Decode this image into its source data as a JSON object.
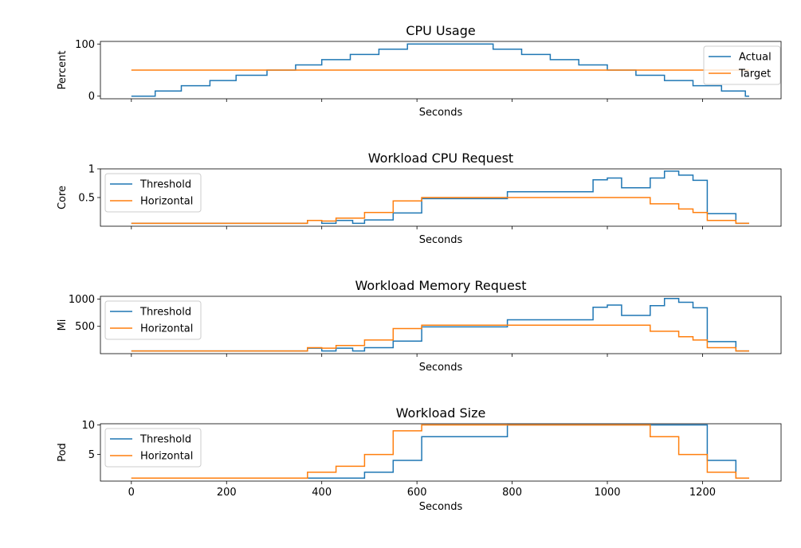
{
  "chart_data": [
    {
      "type": "line",
      "title": "CPU Usage",
      "xlabel": "Seconds",
      "ylabel": "Percent",
      "xlim": [
        -65,
        1365
      ],
      "ylim": [
        -5,
        105
      ],
      "xticks": [
        0,
        200,
        400,
        600,
        800,
        1000,
        1200
      ],
      "xtick_labels_shown": false,
      "yticks": [
        0,
        100
      ],
      "legend": "top-right",
      "series": [
        {
          "name": "Actual",
          "color": "#1f77b4",
          "x": [
            0,
            50,
            50,
            105,
            105,
            165,
            165,
            220,
            220,
            285,
            285,
            345,
            345,
            400,
            400,
            460,
            460,
            520,
            520,
            580,
            580,
            640,
            640,
            700,
            700,
            760,
            760,
            820,
            820,
            880,
            880,
            940,
            940,
            1000,
            1000,
            1060,
            1060,
            1120,
            1120,
            1180,
            1180,
            1240,
            1240,
            1290,
            1290,
            1298
          ],
          "y": [
            0,
            0,
            10,
            10,
            20,
            20,
            30,
            30,
            40,
            40,
            50,
            50,
            60,
            60,
            70,
            70,
            80,
            80,
            90,
            90,
            100,
            100,
            100,
            100,
            100,
            100,
            90,
            90,
            80,
            80,
            70,
            70,
            60,
            60,
            50,
            50,
            40,
            40,
            30,
            30,
            20,
            20,
            10,
            10,
            0,
            0
          ]
        },
        {
          "name": "Target",
          "color": "#ff7f0e",
          "x": [
            0,
            1298
          ],
          "y": [
            50,
            50
          ]
        }
      ]
    },
    {
      "type": "line",
      "title": "Workload CPU Request",
      "xlabel": "Seconds",
      "ylabel": "Core",
      "xlim": [
        -65,
        1365
      ],
      "ylim": [
        0,
        1.0
      ],
      "xticks": [
        0,
        200,
        400,
        600,
        800,
        1000,
        1200
      ],
      "xtick_labels_shown": false,
      "yticks": [
        0.5,
        1.0
      ],
      "legend": "top-left",
      "series": [
        {
          "name": "Threshold",
          "color": "#1f77b4",
          "x": [
            0,
            370,
            370,
            400,
            400,
            430,
            430,
            465,
            465,
            490,
            490,
            550,
            550,
            610,
            610,
            790,
            790,
            970,
            970,
            1000,
            1000,
            1030,
            1030,
            1090,
            1090,
            1120,
            1120,
            1150,
            1150,
            1180,
            1180,
            1210,
            1210,
            1270,
            1270,
            1298
          ],
          "y": [
            0.05,
            0.05,
            0.1,
            0.1,
            0.05,
            0.05,
            0.1,
            0.1,
            0.05,
            0.05,
            0.11,
            0.11,
            0.23,
            0.23,
            0.48,
            0.48,
            0.6,
            0.6,
            0.81,
            0.81,
            0.84,
            0.84,
            0.67,
            0.67,
            0.84,
            0.84,
            0.96,
            0.96,
            0.89,
            0.89,
            0.8,
            0.8,
            0.22,
            0.22,
            0.05,
            0.05
          ]
        },
        {
          "name": "Horizontal",
          "color": "#ff7f0e",
          "x": [
            0,
            370,
            370,
            400,
            400,
            430,
            430,
            490,
            490,
            550,
            550,
            610,
            610,
            1090,
            1090,
            1150,
            1150,
            1180,
            1180,
            1210,
            1210,
            1270,
            1270,
            1298
          ],
          "y": [
            0.05,
            0.05,
            0.1,
            0.1,
            0.09,
            0.09,
            0.14,
            0.14,
            0.24,
            0.24,
            0.44,
            0.44,
            0.5,
            0.5,
            0.39,
            0.39,
            0.3,
            0.3,
            0.24,
            0.24,
            0.1,
            0.1,
            0.05,
            0.05
          ]
        }
      ]
    },
    {
      "type": "line",
      "title": "Workload Memory Request",
      "xlabel": "Seconds",
      "ylabel": "Mi",
      "xlim": [
        -65,
        1365
      ],
      "ylim": [
        0,
        1050
      ],
      "xticks": [
        0,
        200,
        400,
        600,
        800,
        1000,
        1200
      ],
      "xtick_labels_shown": false,
      "yticks": [
        500,
        1000
      ],
      "legend": "top-left",
      "series": [
        {
          "name": "Threshold",
          "color": "#1f77b4",
          "x": [
            0,
            370,
            370,
            400,
            400,
            430,
            430,
            465,
            465,
            490,
            490,
            550,
            550,
            610,
            610,
            790,
            790,
            970,
            970,
            1000,
            1000,
            1030,
            1030,
            1090,
            1090,
            1120,
            1120,
            1150,
            1150,
            1180,
            1180,
            1210,
            1210,
            1270,
            1270,
            1298
          ],
          "y": [
            50,
            50,
            100,
            100,
            50,
            50,
            100,
            100,
            50,
            50,
            110,
            110,
            230,
            230,
            490,
            490,
            620,
            620,
            850,
            850,
            890,
            890,
            700,
            700,
            880,
            880,
            1010,
            1010,
            940,
            940,
            840,
            840,
            220,
            220,
            50,
            50
          ]
        },
        {
          "name": "Horizontal",
          "color": "#ff7f0e",
          "x": [
            0,
            370,
            370,
            400,
            400,
            430,
            430,
            490,
            490,
            550,
            550,
            610,
            610,
            1090,
            1090,
            1150,
            1150,
            1180,
            1180,
            1210,
            1210,
            1270,
            1270,
            1298
          ],
          "y": [
            50,
            50,
            110,
            110,
            100,
            100,
            150,
            150,
            250,
            250,
            460,
            460,
            520,
            520,
            410,
            410,
            310,
            310,
            250,
            250,
            110,
            110,
            50,
            50
          ]
        }
      ]
    },
    {
      "type": "line",
      "title": "Workload Size",
      "xlabel": "Seconds",
      "ylabel": "Pod",
      "xlim": [
        -65,
        1365
      ],
      "ylim": [
        0.5,
        10.2
      ],
      "xticks": [
        0,
        200,
        400,
        600,
        800,
        1000,
        1200
      ],
      "xtick_labels_shown": true,
      "yticks": [
        5,
        10
      ],
      "legend": "top-left",
      "series": [
        {
          "name": "Threshold",
          "color": "#1f77b4",
          "x": [
            0,
            490,
            490,
            550,
            550,
            610,
            610,
            790,
            790,
            1210,
            1210,
            1270,
            1270,
            1298
          ],
          "y": [
            1,
            1,
            2,
            2,
            4,
            4,
            8,
            8,
            10,
            10,
            4,
            4,
            1,
            1
          ]
        },
        {
          "name": "Horizontal",
          "color": "#ff7f0e",
          "x": [
            0,
            370,
            370,
            430,
            430,
            490,
            490,
            550,
            550,
            610,
            610,
            1090,
            1090,
            1150,
            1150,
            1210,
            1210,
            1270,
            1270,
            1298
          ],
          "y": [
            1,
            1,
            2,
            2,
            3,
            3,
            5,
            5,
            9,
            9,
            10,
            10,
            8,
            8,
            5,
            5,
            2,
            2,
            1,
            1
          ]
        }
      ]
    }
  ]
}
